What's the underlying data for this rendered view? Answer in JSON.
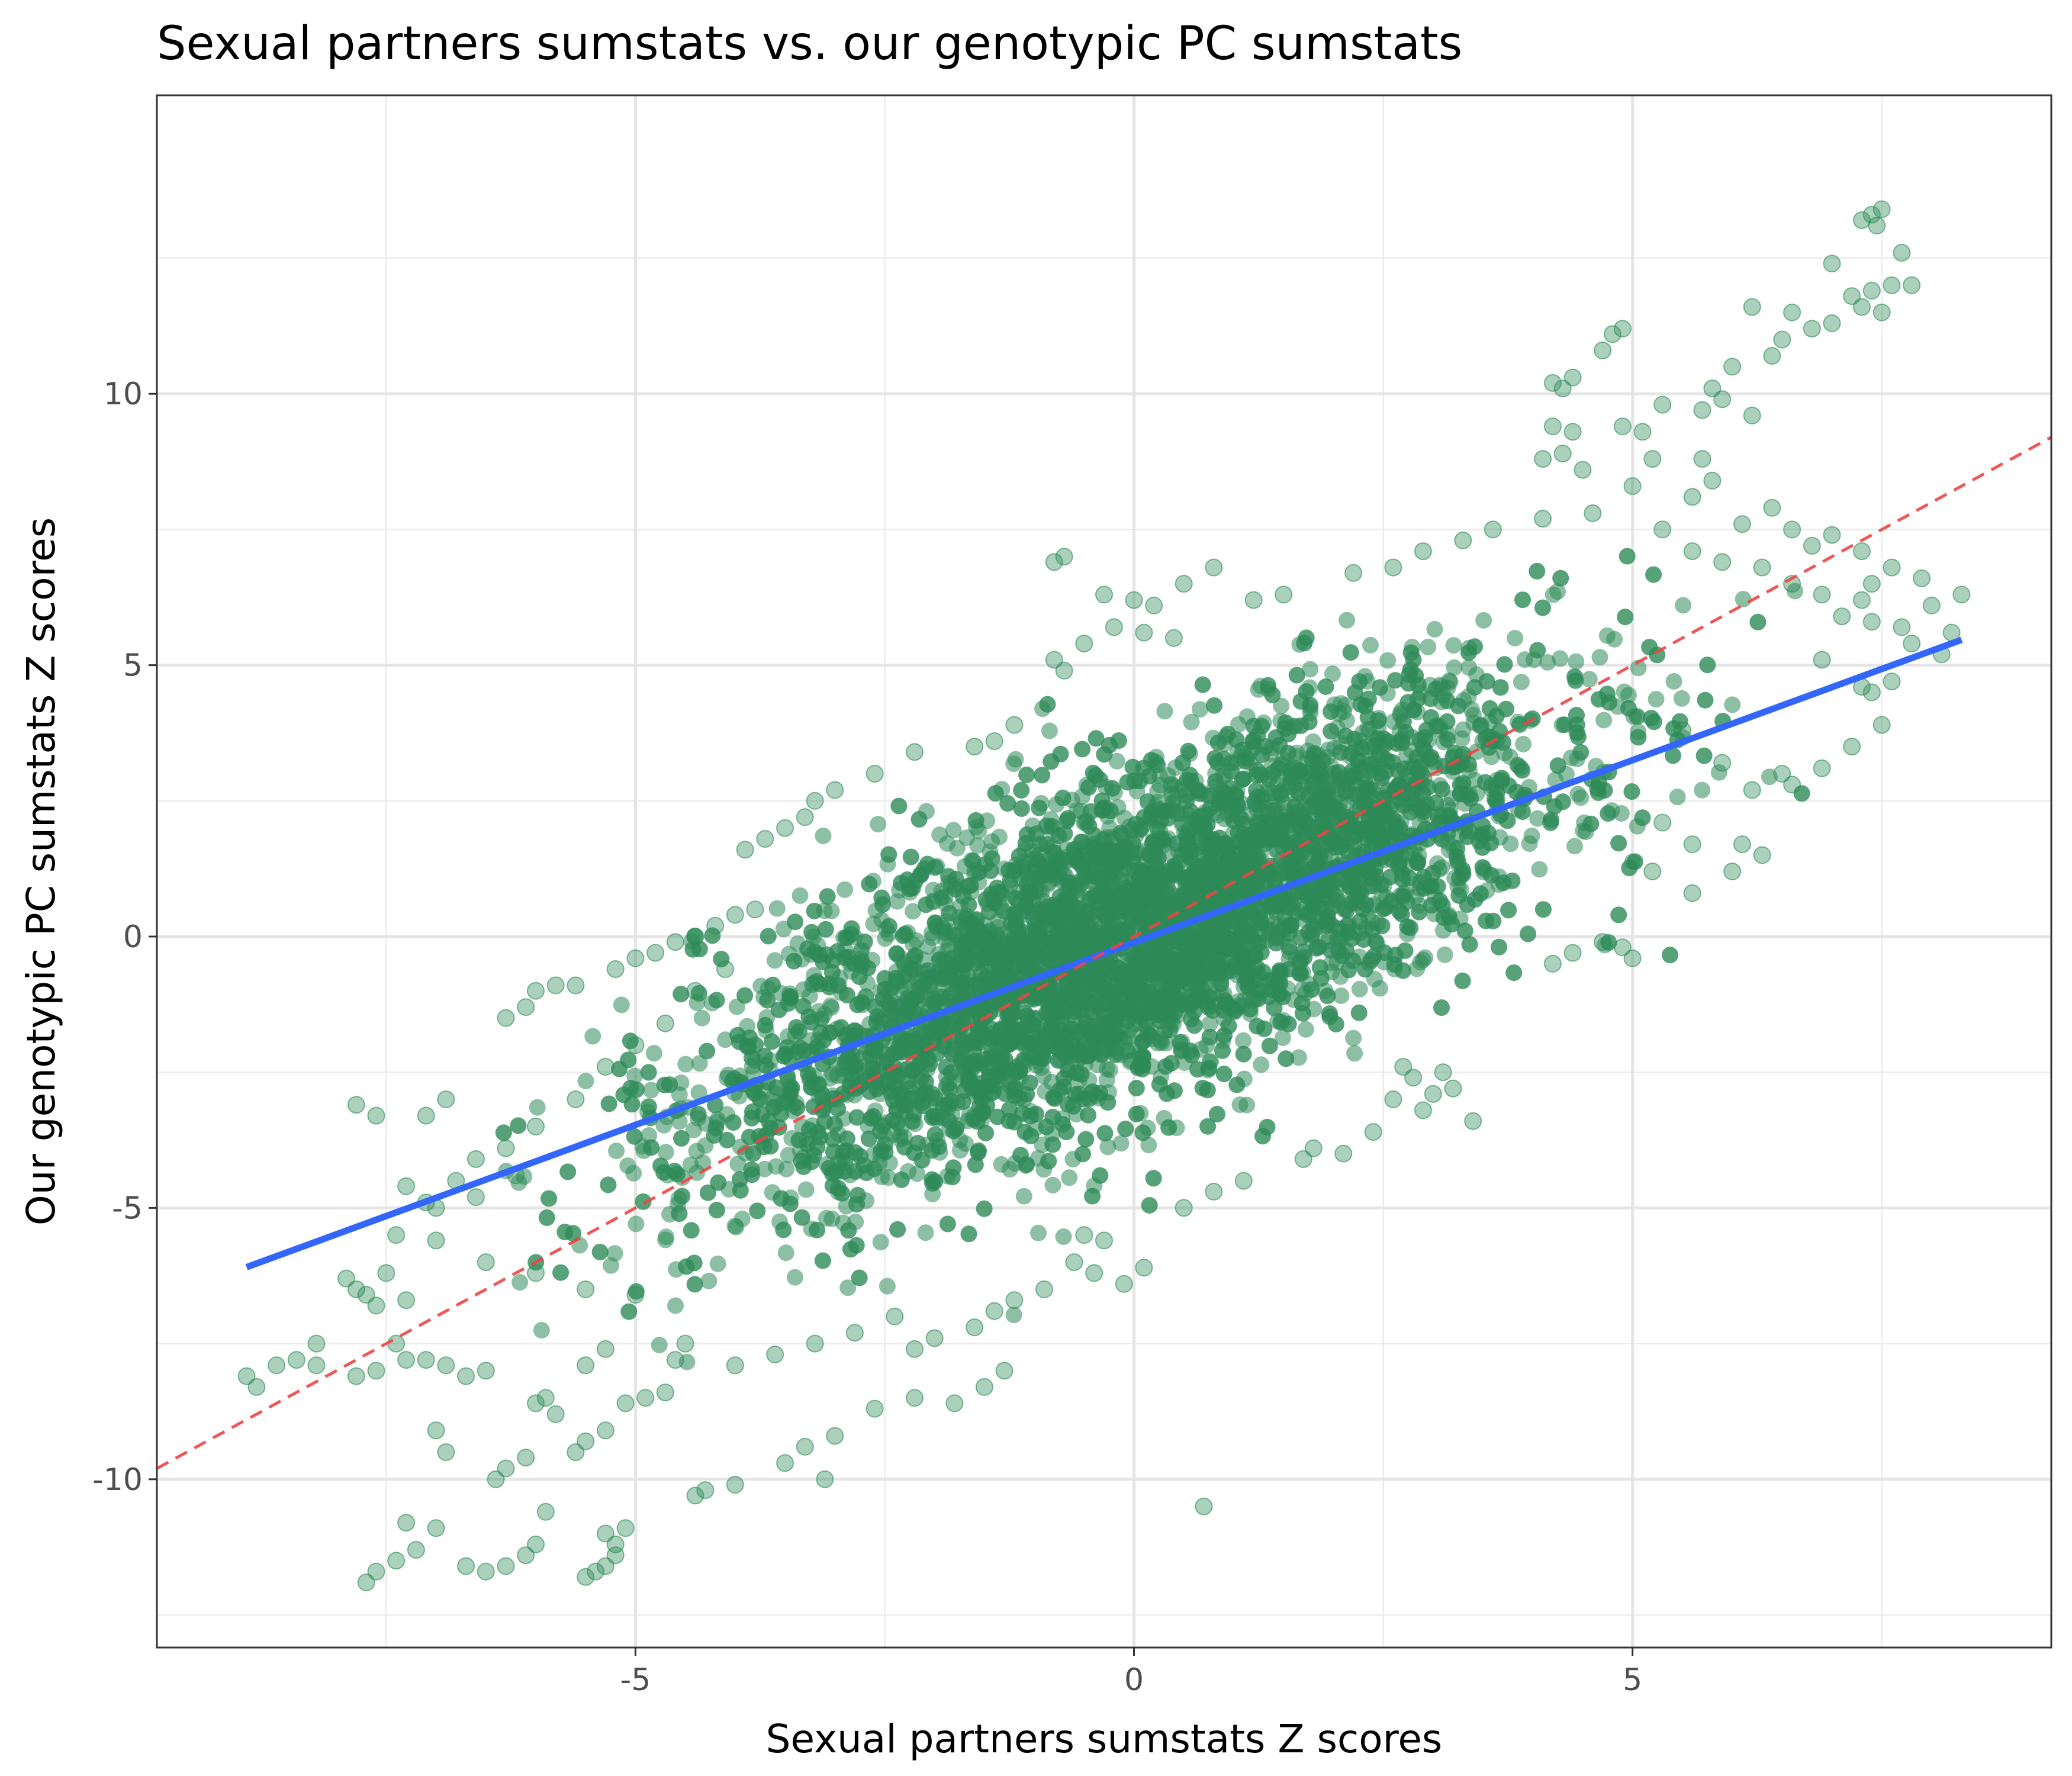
{
  "chart_data": {
    "type": "scatter",
    "title": "Sexual partners sumstats vs. our genotypic PC sumstats",
    "xlabel": "Sexual partners sumstats Z scores",
    "ylabel": "Our genotypic PC sumstats Z scores",
    "xlim": [
      -9.8,
      9.2
    ],
    "ylim": [
      -13.1,
      15.5
    ],
    "x_ticks": [
      -5,
      0,
      5
    ],
    "x_tick_labels": [
      "-5",
      "0",
      "5"
    ],
    "y_ticks": [
      -10,
      -5,
      0,
      5,
      10
    ],
    "y_tick_labels": [
      "-10",
      "-5",
      "0",
      "5",
      "10"
    ],
    "grid": true,
    "legend": "none",
    "point_color": "#2e8b57",
    "point_alpha": 0.4,
    "series": [
      {
        "type": "points",
        "bulk_trend": {
          "slope": 0.78,
          "intercept": 0.0,
          "x_range": [
            -6.5,
            6.8
          ],
          "spread_sd": 1.5
        },
        "points": [
          [
            7.4,
            13.3
          ],
          [
            7.5,
            13.4
          ],
          [
            7.3,
            13.2
          ],
          [
            7.45,
            13.1
          ],
          [
            7.0,
            12.4
          ],
          [
            7.7,
            12.6
          ],
          [
            7.2,
            11.8
          ],
          [
            7.4,
            11.9
          ],
          [
            7.6,
            12.0
          ],
          [
            7.8,
            12.0
          ],
          [
            7.3,
            11.6
          ],
          [
            7.5,
            11.5
          ],
          [
            6.2,
            11.6
          ],
          [
            6.6,
            11.5
          ],
          [
            6.8,
            11.2
          ],
          [
            7.0,
            11.3
          ],
          [
            6.5,
            11.0
          ],
          [
            6.4,
            10.7
          ],
          [
            6.0,
            10.5
          ],
          [
            5.8,
            10.1
          ],
          [
            5.9,
            9.9
          ],
          [
            6.2,
            9.6
          ],
          [
            5.3,
            9.8
          ],
          [
            5.7,
            9.7
          ],
          [
            4.8,
            11.1
          ],
          [
            4.9,
            11.2
          ],
          [
            4.7,
            10.8
          ],
          [
            4.2,
            10.2
          ],
          [
            4.3,
            10.1
          ],
          [
            4.4,
            10.3
          ],
          [
            4.2,
            9.4
          ],
          [
            4.4,
            9.3
          ],
          [
            4.9,
            9.4
          ],
          [
            5.1,
            9.3
          ],
          [
            5.2,
            8.8
          ],
          [
            5.0,
            8.3
          ],
          [
            4.1,
            8.8
          ],
          [
            4.3,
            8.9
          ],
          [
            4.5,
            8.6
          ],
          [
            5.7,
            8.8
          ],
          [
            5.8,
            8.4
          ],
          [
            5.6,
            8.1
          ],
          [
            6.1,
            7.6
          ],
          [
            6.4,
            7.9
          ],
          [
            6.6,
            7.5
          ],
          [
            6.8,
            7.2
          ],
          [
            7.0,
            7.4
          ],
          [
            7.3,
            7.1
          ],
          [
            7.6,
            6.8
          ],
          [
            7.4,
            6.5
          ],
          [
            7.3,
            6.2
          ],
          [
            7.7,
            5.7
          ],
          [
            7.8,
            5.4
          ],
          [
            8.1,
            5.2
          ],
          [
            8.2,
            5.6
          ],
          [
            8.0,
            6.1
          ],
          [
            7.9,
            6.6
          ],
          [
            8.3,
            6.3
          ],
          [
            7.6,
            4.7
          ],
          [
            7.4,
            4.5
          ],
          [
            7.5,
            3.9
          ],
          [
            7.2,
            3.5
          ],
          [
            6.9,
            3.1
          ],
          [
            6.6,
            2.8
          ],
          [
            6.1,
            1.7
          ],
          [
            6.3,
            1.5
          ],
          [
            6.0,
            1.2
          ],
          [
            5.2,
            1.2
          ],
          [
            5.6,
            0.8
          ],
          [
            4.9,
            -0.2
          ],
          [
            5.0,
            -0.4
          ],
          [
            4.7,
            -0.1
          ],
          [
            4.2,
            -0.5
          ],
          [
            4.4,
            -0.3
          ],
          [
            2.8,
            -2.6
          ],
          [
            2.6,
            -3.0
          ],
          [
            3.2,
            -2.8
          ],
          [
            3.4,
            -3.4
          ],
          [
            2.4,
            -3.6
          ],
          [
            2.1,
            -4.0
          ],
          [
            1.8,
            -3.9
          ],
          [
            1.7,
            -4.1
          ],
          [
            2.9,
            -3.2
          ],
          [
            3.0,
            -2.9
          ],
          [
            0.7,
            -10.5
          ],
          [
            0.1,
            -6.1
          ],
          [
            -0.1,
            -6.4
          ],
          [
            -0.3,
            -5.6
          ],
          [
            -0.5,
            -5.5
          ],
          [
            -1.2,
            -6.7
          ],
          [
            -1.4,
            -6.9
          ],
          [
            -1.6,
            -7.2
          ],
          [
            -2.0,
            -7.4
          ],
          [
            -2.2,
            -7.6
          ],
          [
            -1.3,
            -8.0
          ],
          [
            -1.5,
            -8.3
          ],
          [
            -1.8,
            -8.6
          ],
          [
            -2.2,
            -8.5
          ],
          [
            -2.6,
            -8.7
          ],
          [
            -3.0,
            -9.2
          ],
          [
            -3.3,
            -9.4
          ],
          [
            -3.5,
            -9.7
          ],
          [
            -3.1,
            -10.0
          ],
          [
            -4.3,
            -10.2
          ],
          [
            -4.4,
            -10.3
          ],
          [
            -4.0,
            -10.1
          ],
          [
            -4.7,
            -8.4
          ],
          [
            -4.9,
            -8.5
          ],
          [
            -5.1,
            -8.6
          ],
          [
            -4.6,
            -7.8
          ],
          [
            -5.3,
            -7.6
          ],
          [
            -5.5,
            -7.9
          ],
          [
            -5.9,
            -8.5
          ],
          [
            -6.0,
            -8.6
          ],
          [
            -5.8,
            -8.8
          ],
          [
            -5.5,
            -9.3
          ],
          [
            -5.6,
            -9.5
          ],
          [
            -5.3,
            -9.1
          ],
          [
            -6.1,
            -9.6
          ],
          [
            -6.3,
            -9.8
          ],
          [
            -6.4,
            -10.0
          ],
          [
            -5.9,
            -10.6
          ],
          [
            -6.0,
            -11.2
          ],
          [
            -6.1,
            -11.4
          ],
          [
            -6.3,
            -11.6
          ],
          [
            -6.5,
            -11.7
          ],
          [
            -6.7,
            -11.6
          ],
          [
            -5.2,
            -11.4
          ],
          [
            -5.3,
            -11.6
          ],
          [
            -5.4,
            -11.7
          ],
          [
            -5.5,
            -11.8
          ],
          [
            -5.2,
            -11.2
          ],
          [
            -5.3,
            -11.0
          ],
          [
            -5.1,
            -10.9
          ],
          [
            -7.2,
            -11.3
          ],
          [
            -7.4,
            -11.5
          ],
          [
            -7.6,
            -11.7
          ],
          [
            -7.7,
            -11.9
          ],
          [
            -7.3,
            -10.8
          ],
          [
            -7.0,
            -10.9
          ],
          [
            -7.0,
            -9.1
          ],
          [
            -6.9,
            -9.5
          ],
          [
            -6.5,
            -8.0
          ],
          [
            -6.7,
            -8.1
          ],
          [
            -6.9,
            -7.9
          ],
          [
            -7.1,
            -7.8
          ],
          [
            -7.3,
            -7.8
          ],
          [
            -7.8,
            -8.1
          ],
          [
            -8.2,
            -7.9
          ],
          [
            -8.4,
            -7.8
          ],
          [
            -8.6,
            -7.9
          ],
          [
            -8.9,
            -8.1
          ],
          [
            -8.8,
            -8.3
          ],
          [
            -8.2,
            -7.5
          ],
          [
            -7.6,
            -8.0
          ],
          [
            -7.4,
            -7.5
          ],
          [
            -7.8,
            -6.5
          ],
          [
            -7.9,
            -6.3
          ],
          [
            -7.7,
            -6.6
          ],
          [
            -7.6,
            -6.8
          ],
          [
            -7.3,
            -6.7
          ],
          [
            -7.5,
            -6.2
          ],
          [
            -7.8,
            -3.1
          ],
          [
            -7.6,
            -3.3
          ],
          [
            -7.1,
            -3.3
          ],
          [
            -6.9,
            -3.0
          ],
          [
            -7.3,
            -4.6
          ],
          [
            -7.1,
            -4.9
          ],
          [
            -6.8,
            -4.5
          ],
          [
            -6.6,
            -4.1
          ],
          [
            -6.3,
            -3.9
          ],
          [
            -6.3,
            -1.5
          ],
          [
            -6.1,
            -1.3
          ],
          [
            -6.0,
            -1.0
          ],
          [
            -5.8,
            -0.9
          ],
          [
            -5.6,
            -0.9
          ],
          [
            -5.2,
            -0.6
          ],
          [
            -5.0,
            -0.4
          ],
          [
            -4.8,
            -0.3
          ],
          [
            -4.6,
            -0.1
          ],
          [
            -4.4,
            0.0
          ],
          [
            -4.2,
            0.2
          ],
          [
            -4.0,
            0.4
          ],
          [
            -3.8,
            0.5
          ],
          [
            -3.9,
            1.6
          ],
          [
            -3.7,
            1.8
          ],
          [
            -3.5,
            2.0
          ],
          [
            -3.3,
            2.2
          ],
          [
            -3.2,
            2.5
          ],
          [
            -3.0,
            2.7
          ],
          [
            -2.6,
            3.0
          ],
          [
            -2.2,
            3.4
          ],
          [
            -1.6,
            3.5
          ],
          [
            -1.4,
            3.6
          ],
          [
            -1.2,
            3.9
          ],
          [
            -0.7,
            4.9
          ],
          [
            -0.8,
            5.1
          ],
          [
            -0.5,
            5.4
          ],
          [
            -0.2,
            5.7
          ],
          [
            0.0,
            6.2
          ],
          [
            0.2,
            6.1
          ],
          [
            0.5,
            6.5
          ],
          [
            0.8,
            6.8
          ],
          [
            -0.8,
            6.9
          ],
          [
            -0.7,
            7.0
          ],
          [
            -0.3,
            6.3
          ],
          [
            0.1,
            5.6
          ],
          [
            0.4,
            5.5
          ],
          [
            1.2,
            6.2
          ],
          [
            1.5,
            6.3
          ],
          [
            2.2,
            6.7
          ],
          [
            2.6,
            6.8
          ],
          [
            2.9,
            7.1
          ],
          [
            3.3,
            7.3
          ],
          [
            3.6,
            7.5
          ],
          [
            4.1,
            7.7
          ],
          [
            4.6,
            7.8
          ],
          [
            5.3,
            7.5
          ],
          [
            5.6,
            7.1
          ],
          [
            5.9,
            6.9
          ],
          [
            6.3,
            6.8
          ],
          [
            6.6,
            6.5
          ],
          [
            6.9,
            6.3
          ],
          [
            7.1,
            5.9
          ],
          [
            7.4,
            5.8
          ],
          [
            6.9,
            5.1
          ],
          [
            7.3,
            4.6
          ],
          [
            5.5,
            3.8
          ],
          [
            5.9,
            3.2
          ],
          [
            6.2,
            2.7
          ],
          [
            6.5,
            3.0
          ],
          [
            5.3,
            2.1
          ],
          [
            5.6,
            1.7
          ],
          [
            3.1,
            -2.5
          ],
          [
            2.7,
            -2.4
          ],
          [
            1.1,
            -4.5
          ],
          [
            0.8,
            -4.7
          ],
          [
            0.5,
            -5.0
          ],
          [
            -0.4,
            -6.2
          ],
          [
            -0.6,
            -6.0
          ],
          [
            -0.9,
            -6.5
          ],
          [
            -2.4,
            -7.0
          ],
          [
            -2.8,
            -7.3
          ],
          [
            -3.2,
            -7.5
          ],
          [
            -3.6,
            -7.7
          ],
          [
            -4.0,
            -7.9
          ],
          [
            -4.5,
            -7.5
          ],
          [
            -5.0,
            -6.6
          ],
          [
            -5.5,
            -6.5
          ],
          [
            -6.0,
            -6.2
          ],
          [
            -6.5,
            -6.0
          ],
          [
            -7.0,
            -5.6
          ],
          [
            -7.4,
            -5.5
          ],
          [
            -7.0,
            -5.0
          ],
          [
            -6.6,
            -4.8
          ],
          [
            -6.2,
            -4.4
          ],
          [
            -6.0,
            -3.5
          ],
          [
            -5.6,
            -3.0
          ],
          [
            -5.3,
            -2.4
          ],
          [
            -5.0,
            -2.0
          ],
          [
            -4.7,
            -1.6
          ],
          [
            -4.4,
            -1.0
          ],
          [
            -4.1,
            -0.6
          ]
        ]
      },
      {
        "type": "line",
        "style": "solid",
        "color": "#3366ff",
        "slope": 0.672,
        "intercept": -0.11,
        "x_range": [
          -8.9,
          8.3
        ]
      },
      {
        "type": "line",
        "style": "dashed",
        "color": "#ee4444",
        "slope": 1.0,
        "intercept": 0.0,
        "x_range": [
          -9.8,
          9.2
        ]
      }
    ]
  }
}
